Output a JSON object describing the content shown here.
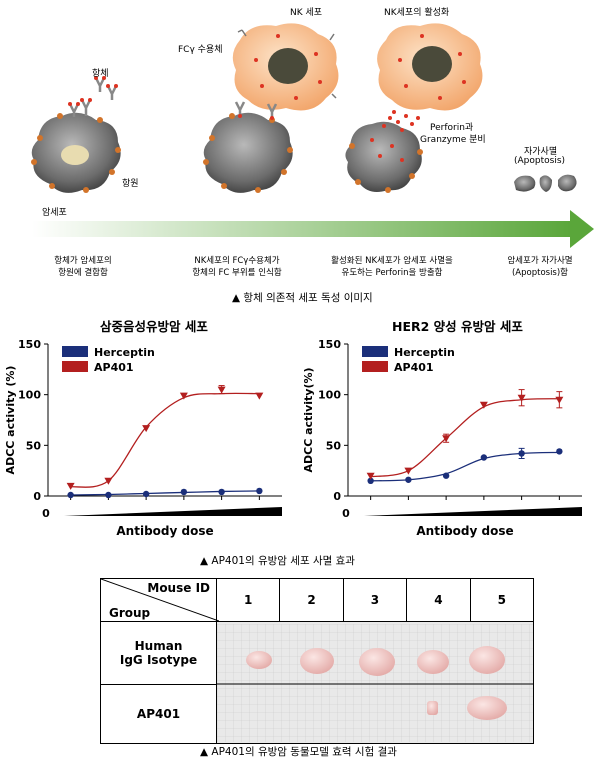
{
  "mechanism": {
    "labels": {
      "antibody": "항체",
      "antigen": "항원",
      "cancer_cell": "암세포",
      "nk_cell": "NK 세포",
      "fc_receptor": "FCγ 수용체",
      "nk_activation": "NK세포의 활성화",
      "perforin_1": "Perforin과",
      "perforin_2": "Granzyme 분비",
      "apoptosis_1": "자가사멸",
      "apoptosis_2": "(Apoptosis)"
    },
    "steps": [
      {
        "line1": "항체가 암세포의",
        "line2": "항원에 결합함"
      },
      {
        "line1": "NK세포의 FCγ수용체가",
        "line2": "항체의 FC 부위를 인식함"
      },
      {
        "line1": "활성화된 NK세포가 암세포 사멸을",
        "line2": "유도하는 Perforin을 방출함"
      },
      {
        "line1": "암세포가 자가사멸",
        "line2": "(Apoptosis)함"
      }
    ],
    "arrow_color": "#5aa63a",
    "caption": "▲   항체 의존적 세포 독성 이미지"
  },
  "charts_caption": "▲   AP401의 유방암 세포 사멸 효과",
  "chart_data": [
    {
      "type": "line",
      "title": "삼중음성유방암 세포",
      "xlabel": "Antibody dose",
      "ylabel": "ADCC activity (%)",
      "x_zero_label": "0",
      "ylim": [
        0,
        150
      ],
      "yticks": [
        "0",
        "50",
        "100",
        "150"
      ],
      "x": [
        1,
        2,
        3,
        4,
        5,
        6
      ],
      "series": [
        {
          "name": "Herceptin",
          "color": "#1b2f7a",
          "marker": "circle",
          "values": [
            1,
            1,
            2,
            4,
            4,
            5
          ],
          "errors": [
            0,
            0,
            0,
            0,
            0,
            0
          ],
          "fit": [
            1,
            1.5,
            2.5,
            3.5,
            4.5,
            5
          ]
        },
        {
          "name": "AP401",
          "color": "#b31f1f",
          "marker": "triangle",
          "values": [
            10,
            15,
            67,
            99,
            105,
            99
          ],
          "errors": [
            0,
            0,
            0,
            0,
            4,
            0
          ],
          "fit": [
            9,
            15,
            68,
            97,
            101,
            101
          ]
        }
      ]
    },
    {
      "type": "line",
      "title": "HER2 양성 유방암 세포",
      "xlabel": "Antibody dose",
      "ylabel": "ADCC activity(%)",
      "x_zero_label": "0",
      "ylim": [
        0,
        150
      ],
      "yticks": [
        "0",
        "50",
        "100",
        "150"
      ],
      "x": [
        1,
        2,
        3,
        4,
        5,
        6
      ],
      "series": [
        {
          "name": "Herceptin",
          "color": "#1b2f7a",
          "marker": "circle",
          "values": [
            15,
            16,
            20,
            38,
            42,
            44
          ],
          "errors": [
            0,
            0,
            0,
            0,
            5,
            0
          ],
          "fit": [
            15,
            16,
            22,
            37,
            42,
            43
          ]
        },
        {
          "name": "AP401",
          "color": "#b31f1f",
          "marker": "triangle",
          "values": [
            20,
            25,
            57,
            90,
            97,
            95
          ],
          "errors": [
            0,
            0,
            4,
            0,
            8,
            8
          ],
          "fit": [
            19,
            25,
            57,
            88,
            95,
            96
          ]
        }
      ]
    }
  ],
  "results_table": {
    "header_mouse_id": "Mouse ID",
    "header_group": "Group",
    "mouse_ids": [
      "1",
      "2",
      "3",
      "4",
      "5"
    ],
    "groups": [
      {
        "line1": "Human",
        "line2": "IgG Isotype"
      },
      {
        "line1": "AP401",
        "line2": ""
      }
    ],
    "caption": "▲   AP401의 유방암 동물모델 효력 시험 결과"
  }
}
